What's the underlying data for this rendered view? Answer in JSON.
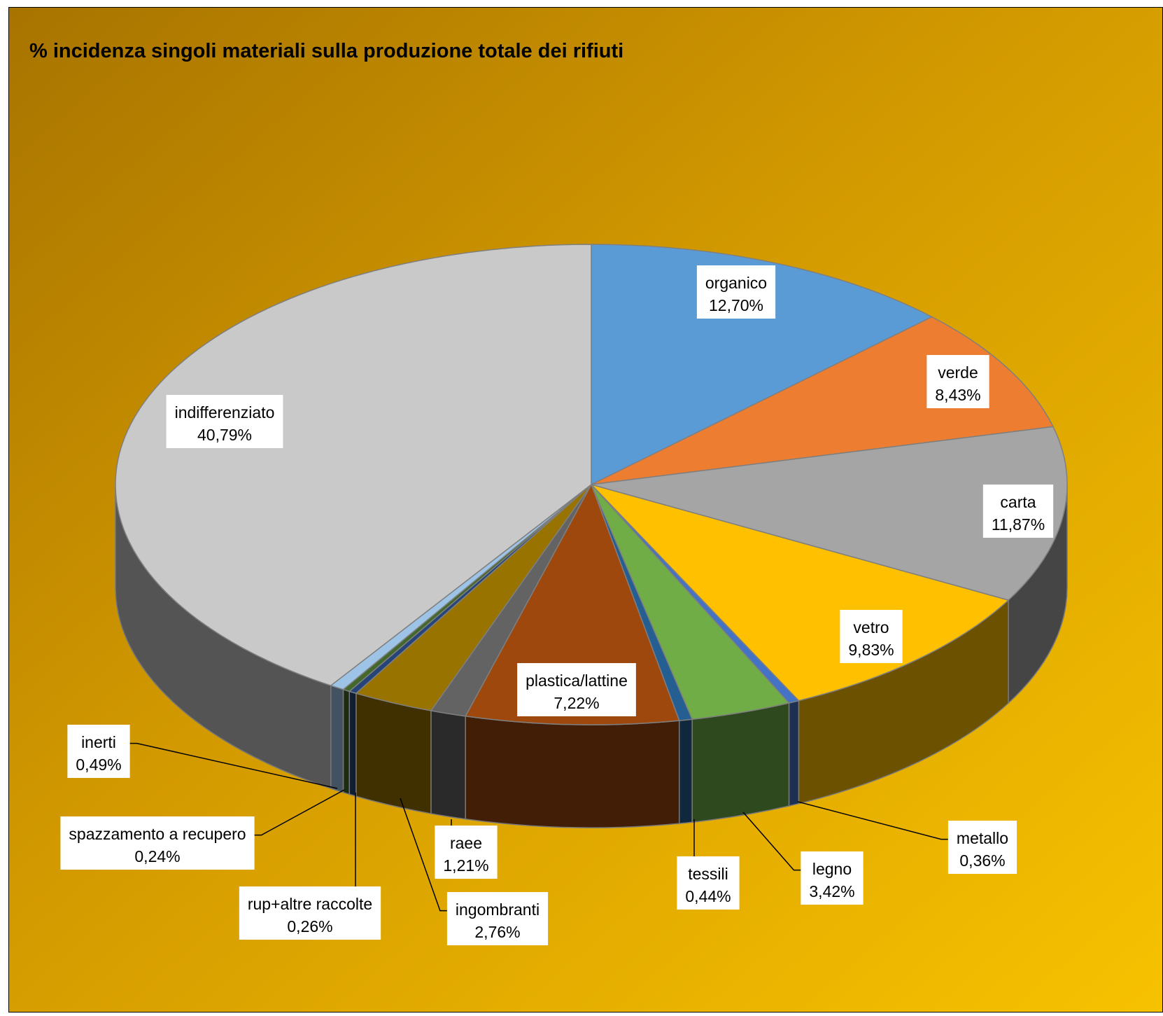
{
  "chart_data": {
    "type": "pie",
    "title": "% incidenza singoli materiali sulla produzione totale dei rifiuti",
    "slices": [
      {
        "label": "organico",
        "value": 12.7,
        "value_label": "12,70%",
        "color": "#5b9bd5"
      },
      {
        "label": "verde",
        "value": 8.43,
        "value_label": "8,43%",
        "color": "#ed7d31"
      },
      {
        "label": "carta",
        "value": 11.87,
        "value_label": "11,87%",
        "color": "#a5a5a5"
      },
      {
        "label": "vetro",
        "value": 9.83,
        "value_label": "9,83%",
        "color": "#ffc000"
      },
      {
        "label": "metallo",
        "value": 0.36,
        "value_label": "0,36%",
        "color": "#4472c4"
      },
      {
        "label": "legno",
        "value": 3.42,
        "value_label": "3,42%",
        "color": "#70ad47"
      },
      {
        "label": "tessili",
        "value": 0.44,
        "value_label": "0,44%",
        "color": "#255e91"
      },
      {
        "label": "plastica/lattine",
        "value": 7.22,
        "value_label": "7,22%",
        "color": "#9e480e"
      },
      {
        "label": "raee",
        "value": 1.21,
        "value_label": "1,21%",
        "color": "#636363"
      },
      {
        "label": "ingombranti",
        "value": 2.76,
        "value_label": "2,76%",
        "color": "#997300"
      },
      {
        "label": "rup+altre raccolte",
        "value": 0.26,
        "value_label": "0,26%",
        "color": "#264478"
      },
      {
        "label": "spazzamento a recupero",
        "value": 0.24,
        "value_label": "0,24%",
        "color": "#43682b"
      },
      {
        "label": "inerti",
        "value": 0.49,
        "value_label": "0,49%",
        "color": "#9dc3e6"
      },
      {
        "label": "indifferenziato",
        "value": 40.79,
        "value_label": "40,79%",
        "color": "#c9c9c9"
      }
    ],
    "legend": "none",
    "background": [
      "#a87400",
      "#d39a00",
      "#f7c200"
    ]
  }
}
